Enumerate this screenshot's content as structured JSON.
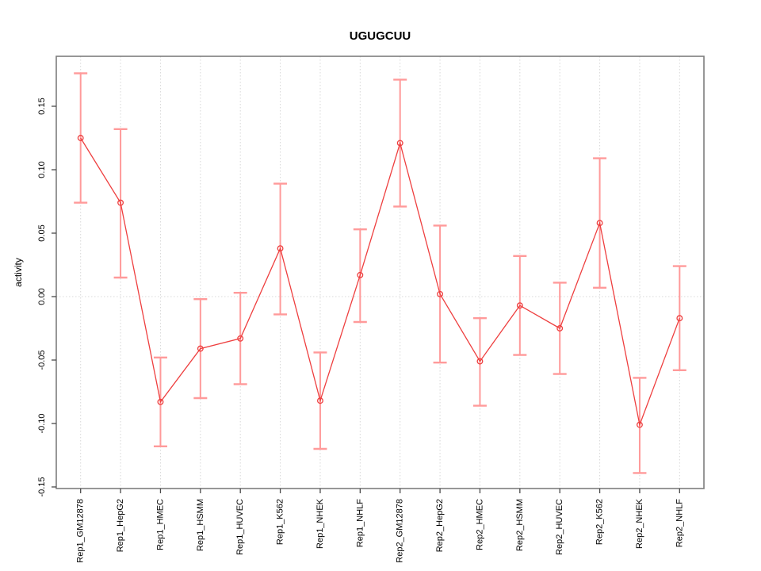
{
  "chart_data": {
    "type": "line",
    "title": "UGUGCUU",
    "xlabel": "",
    "ylabel": "activity",
    "categories": [
      "Rep1_GM12878",
      "Rep1_HepG2",
      "Rep1_HMEC",
      "Rep1_HSMM",
      "Rep1_HUVEC",
      "Rep1_K562",
      "Rep1_NHEK",
      "Rep1_NHLF",
      "Rep2_GM12878",
      "Rep2_HepG2",
      "Rep2_HMEC",
      "Rep2_HSMM",
      "Rep2_HUVEC",
      "Rep2_K562",
      "Rep2_NHEK",
      "Rep2_NHLF"
    ],
    "series": [
      {
        "name": "activity",
        "values": [
          0.125,
          0.074,
          -0.083,
          -0.041,
          -0.033,
          0.038,
          -0.082,
          0.017,
          0.121,
          0.002,
          -0.051,
          -0.007,
          -0.025,
          0.058,
          -0.101,
          -0.017
        ],
        "ci_high": [
          0.176,
          0.132,
          -0.048,
          -0.002,
          0.003,
          0.089,
          -0.044,
          0.053,
          0.171,
          0.056,
          -0.017,
          0.032,
          0.011,
          0.109,
          -0.064,
          0.024
        ],
        "ci_low": [
          0.074,
          0.015,
          -0.118,
          -0.08,
          -0.069,
          -0.014,
          -0.12,
          -0.02,
          0.071,
          -0.052,
          -0.086,
          -0.046,
          -0.061,
          0.007,
          -0.139,
          -0.058
        ]
      }
    ],
    "ytick_labels": [
      "0.15",
      "0.10",
      "0.05",
      "0.00",
      "-0.05",
      "-0.10",
      "-0.15"
    ],
    "ytick_values": [
      0.15,
      0.1,
      0.05,
      0.0,
      -0.05,
      -0.1,
      -0.15
    ],
    "ylim": [
      -0.151,
      0.189
    ],
    "grid": {
      "vertical_dotted": true,
      "horizontal_zero_dotted": true
    },
    "legend": "none",
    "marker": "open-circle",
    "colors": {
      "series_line": "#ee3f3f",
      "marker": "#ee3f3f",
      "error_bar": "#ff9a9a",
      "grid_line": "#d8d8d8",
      "axis_box": "#7d7d7d",
      "tick": "#4a4a4a",
      "text": "#000000",
      "background": "#ffffff"
    }
  }
}
